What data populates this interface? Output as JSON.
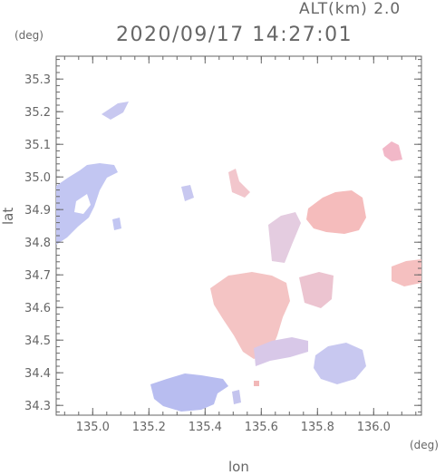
{
  "header": {
    "altitude": "ALT(km) 2.0",
    "datetime": "2020/09/17 14:27:01"
  },
  "axes": {
    "x_unit": "(deg)",
    "y_unit": "(deg)",
    "xlabel": "lon",
    "ylabel": "lat",
    "xlim": [
      134.87,
      136.17
    ],
    "ylim": [
      34.27,
      35.37
    ],
    "xticks": [
      "135.0",
      "135.2",
      "135.4",
      "135.6",
      "135.8",
      "136.0"
    ],
    "yticks": [
      "34.3",
      "34.4",
      "34.5",
      "34.6",
      "34.7",
      "34.8",
      "34.9",
      "35.0",
      "35.1",
      "35.2",
      "35.3"
    ]
  },
  "colors": {
    "approaching": "#b8bdf0",
    "receding": "#f5b8b8",
    "mixed_blue": "#8a90e8",
    "mixed_red": "#ec8f8f"
  }
}
